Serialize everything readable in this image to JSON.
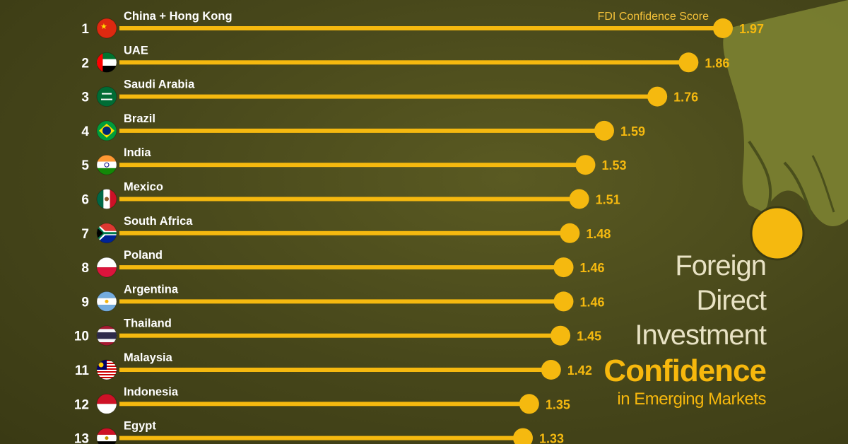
{
  "title": {
    "line1": "Foreign",
    "line2": "Direct",
    "line3": "Investment",
    "highlight": "Confidence",
    "subtitle": "in Emerging Markets"
  },
  "colors": {
    "accent": "#f5b90f",
    "background": "#46461a",
    "text": "#ffffff"
  },
  "chart_data": {
    "type": "bar",
    "legend": "FDI Confidence Score",
    "categories": [
      "China + Hong Kong",
      "UAE",
      "Saudi Arabia",
      "Brazil",
      "India",
      "Mexico",
      "South Africa",
      "Poland",
      "Argentina",
      "Thailand",
      "Malaysia",
      "Indonesia",
      "Egypt"
    ],
    "ranks": [
      "1",
      "2",
      "3",
      "4",
      "5",
      "6",
      "7",
      "8",
      "9",
      "10",
      "11",
      "12",
      "13"
    ],
    "values": [
      1.97,
      1.86,
      1.76,
      1.59,
      1.53,
      1.51,
      1.48,
      1.46,
      1.46,
      1.45,
      1.42,
      1.35,
      1.33
    ],
    "value_labels": [
      "1.97",
      "1.86",
      "1.76",
      "1.59",
      "1.53",
      "1.51",
      "1.48",
      "1.46",
      "1.46",
      "1.45",
      "1.42",
      "1.35",
      "1.33"
    ],
    "flag_icons": [
      "china-flag-icon",
      "uae-flag-icon",
      "saudi-arabia-flag-icon",
      "brazil-flag-icon",
      "india-flag-icon",
      "mexico-flag-icon",
      "south-africa-flag-icon",
      "poland-flag-icon",
      "argentina-flag-icon",
      "thailand-flag-icon",
      "malaysia-flag-icon",
      "indonesia-flag-icon",
      "egypt-flag-icon"
    ],
    "style": "lollipop",
    "orientation": "horizontal"
  }
}
